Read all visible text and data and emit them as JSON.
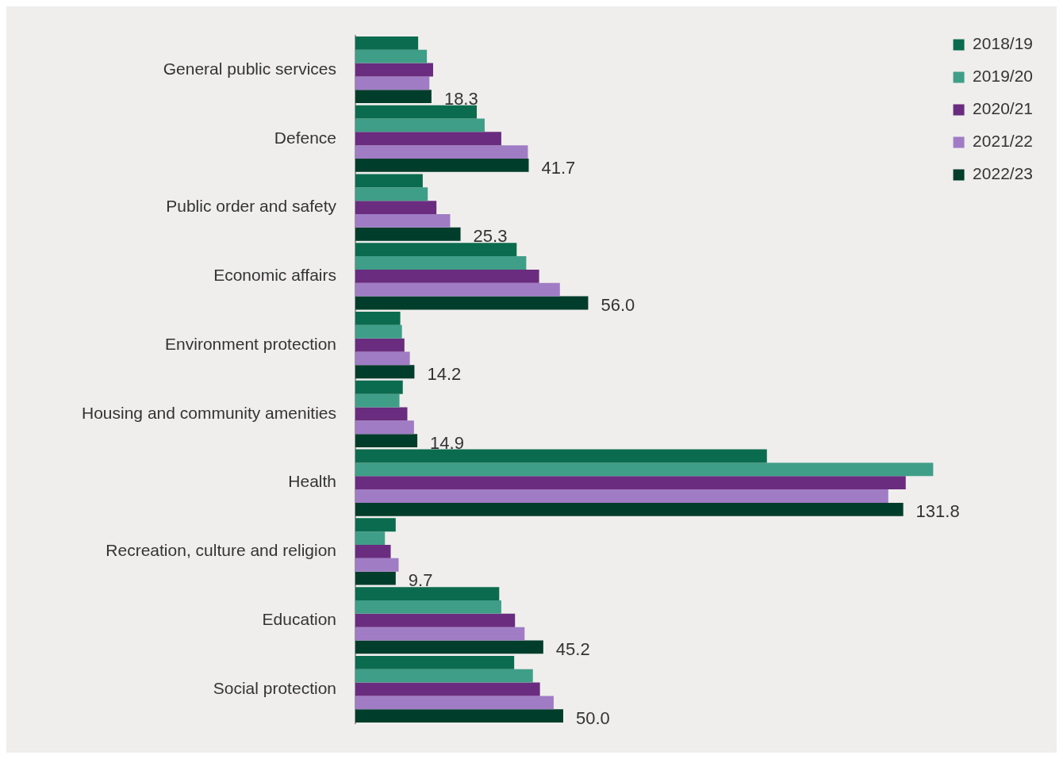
{
  "chart_data": {
    "type": "bar",
    "orientation": "horizontal",
    "categories": [
      "General public services",
      "Defence",
      "Public order and safety",
      "Economic affairs",
      "Environment protection",
      "Housing and community amenities",
      "Health",
      "Recreation, culture and religion",
      "Education",
      "Social protection"
    ],
    "series": [
      {
        "name": "2018/19",
        "color": "#0b6b4f",
        "values": [
          15.1,
          29.2,
          16.2,
          38.8,
          10.8,
          11.4,
          99.0,
          9.7,
          34.6,
          38.2
        ]
      },
      {
        "name": "2019/20",
        "color": "#3f9e87",
        "values": [
          17.2,
          31.1,
          17.4,
          41.1,
          11.2,
          10.6,
          139.0,
          7.1,
          35.1,
          42.7
        ]
      },
      {
        "name": "2020/21",
        "color": "#6a2c7f",
        "values": [
          18.7,
          35.1,
          19.5,
          44.2,
          11.8,
          12.5,
          132.4,
          8.5,
          38.4,
          44.4
        ]
      },
      {
        "name": "2021/22",
        "color": "#a07cc5",
        "values": [
          17.8,
          41.5,
          22.8,
          49.2,
          13.1,
          14.1,
          128.2,
          10.4,
          40.7,
          47.7
        ]
      },
      {
        "name": "2022/23",
        "color": "#003d2b",
        "values": [
          18.3,
          41.7,
          25.3,
          56.0,
          14.2,
          14.9,
          131.8,
          9.7,
          45.2,
          50.0
        ],
        "value_labels": [
          "18.3",
          "41.7",
          "25.3",
          "56.0",
          "14.2",
          "14.9",
          "131.8",
          "9.7",
          "45.2",
          "50.0"
        ]
      }
    ],
    "legend": "top right"
  }
}
